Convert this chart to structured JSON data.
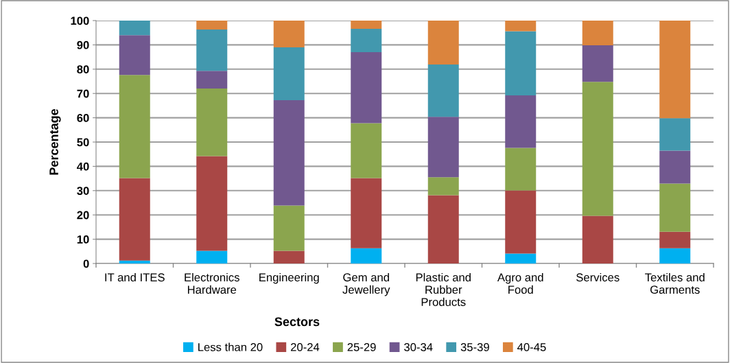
{
  "chart_data": {
    "type": "bar",
    "stacked": true,
    "xlabel": "Sectors",
    "ylabel": "Percentage",
    "categories": [
      "IT and ITES",
      "Electronics\nHardware",
      "Engineering",
      "Gem and\nJewellery",
      "Plastic and\nRubber\nProducts",
      "Agro and\nFood",
      "Services",
      "Textiles and\nGarments"
    ],
    "series": [
      {
        "name": "Less than 20",
        "color": "#00b0f0",
        "values": [
          1.2,
          5.2,
          0,
          6.3,
          0,
          4.1,
          0,
          6.3
        ]
      },
      {
        "name": "20-24",
        "color": "#a94745",
        "values": [
          34.0,
          39.0,
          5.2,
          28.9,
          28.1,
          26.0,
          19.6,
          6.8
        ]
      },
      {
        "name": "25-29",
        "color": "#8ba54e",
        "values": [
          42.4,
          27.8,
          18.7,
          22.6,
          7.4,
          17.5,
          55.2,
          19.8
        ]
      },
      {
        "name": "30-34",
        "color": "#71588f",
        "values": [
          16.4,
          7.3,
          43.3,
          29.2,
          24.9,
          21.6,
          15.0,
          13.6
        ]
      },
      {
        "name": "35-39",
        "color": "#4298ae",
        "values": [
          6.0,
          17.0,
          21.8,
          9.6,
          21.5,
          26.4,
          0,
          13.3
        ]
      },
      {
        "name": "40-45",
        "color": "#db843d",
        "values": [
          0,
          3.7,
          11.0,
          3.4,
          18.1,
          4.4,
          10.2,
          40.2
        ]
      }
    ],
    "ylim": [
      0,
      100
    ],
    "yticks": [
      0,
      10,
      20,
      30,
      40,
      50,
      60,
      70,
      80,
      90,
      100
    ],
    "grid": "y",
    "legend": "bottom"
  }
}
